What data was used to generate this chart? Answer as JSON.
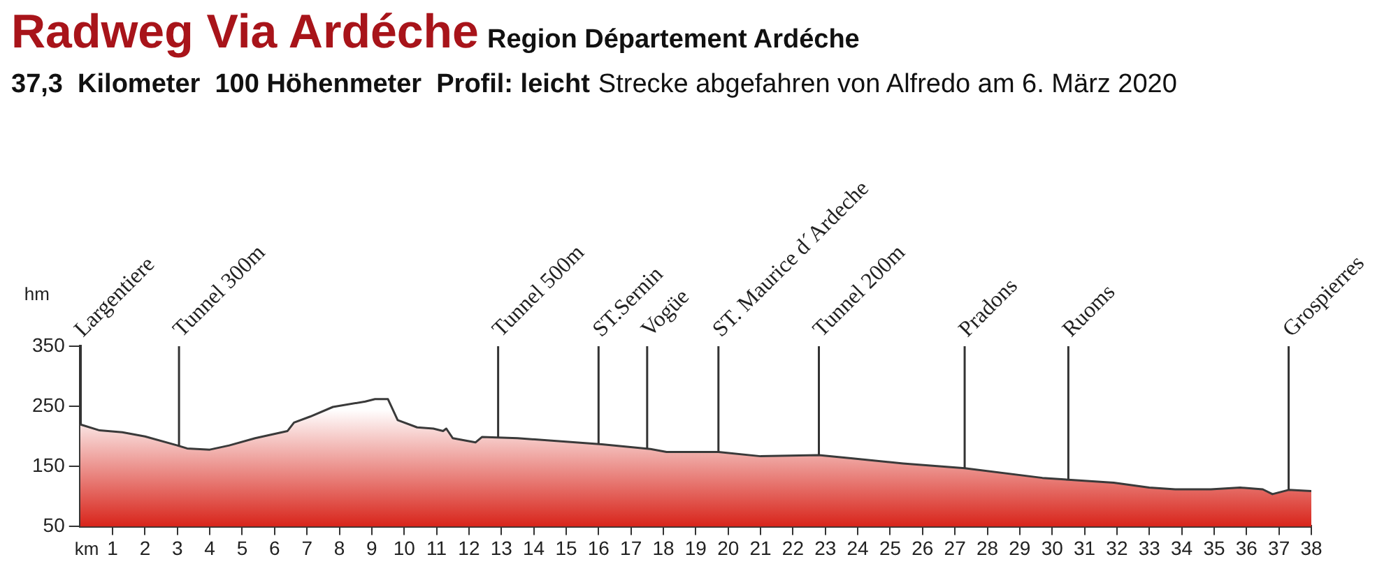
{
  "chart_data": {
    "type": "area",
    "title": "Radweg Via Ardéche",
    "subtitle": "Region Département Ardéche",
    "annotations": [
      "37,3  Kilometer  100 Höhenmeter  Profil: leicht",
      "Strecke abgefahren von Alfredo am 6. März 2020"
    ],
    "xlabel": "km",
    "ylabel": "hm",
    "series": [
      {
        "color": "#d8241a",
        "x": [
          0,
          0.6,
          1.3,
          2.0,
          3.0,
          3.3,
          4.0,
          4.6,
          5.4,
          6.4,
          6.6,
          7.1,
          7.8,
          8.8,
          9.1,
          9.5,
          9.8,
          10.4,
          10.9,
          11.2,
          11.3,
          11.5,
          12.2,
          12.4,
          13.5,
          16.1,
          17.6,
          18.1,
          19.7,
          21.0,
          22.8,
          23.9,
          25.4,
          27.3,
          29.7,
          30.5,
          31.9,
          33.0,
          33.8,
          34.9,
          35.8,
          36.5,
          36.8,
          37.3,
          38.0
        ],
        "values": [
          220,
          210,
          207,
          200,
          185,
          180,
          178,
          185,
          197,
          209,
          223,
          233,
          249,
          258,
          262,
          262,
          227,
          215,
          213,
          209,
          213,
          197,
          190,
          199,
          197,
          187,
          179,
          174,
          174,
          167,
          169,
          163,
          155,
          147,
          131,
          128,
          123,
          115,
          112,
          112,
          115,
          112,
          104,
          111,
          109
        ]
      }
    ],
    "xlim": [
      0,
      38
    ],
    "xticks": [
      1,
      2,
      3,
      4,
      5,
      6,
      7,
      8,
      9,
      10,
      11,
      12,
      13,
      14,
      15,
      16,
      17,
      18,
      19,
      20,
      21,
      22,
      23,
      24,
      25,
      26,
      27,
      28,
      29,
      30,
      31,
      32,
      33,
      34,
      35,
      36,
      37,
      38
    ],
    "ylim": [
      50,
      350
    ],
    "yticks": [
      50,
      150,
      250,
      350
    ],
    "grid": false,
    "legend": false,
    "ref_lines": [
      {
        "axis": "x",
        "value": 0,
        "label": "Largentiere"
      },
      {
        "axis": "x",
        "value": 3.05,
        "label": "Tunnel 300m"
      },
      {
        "axis": "x",
        "value": 12.9,
        "label": "Tunnel 500m"
      },
      {
        "axis": "x",
        "value": 16.0,
        "label": "ST.Sernin"
      },
      {
        "axis": "x",
        "value": 17.5,
        "label": "Vogüe"
      },
      {
        "axis": "x",
        "value": 19.7,
        "label": "ST. Maurice d´Ardeche"
      },
      {
        "axis": "x",
        "value": 22.8,
        "label": "Tunnel 200m"
      },
      {
        "axis": "x",
        "value": 27.3,
        "label": "Pradons"
      },
      {
        "axis": "x",
        "value": 30.5,
        "label": "Ruoms"
      },
      {
        "axis": "x",
        "value": 37.3,
        "label": "Grospierres"
      }
    ]
  }
}
